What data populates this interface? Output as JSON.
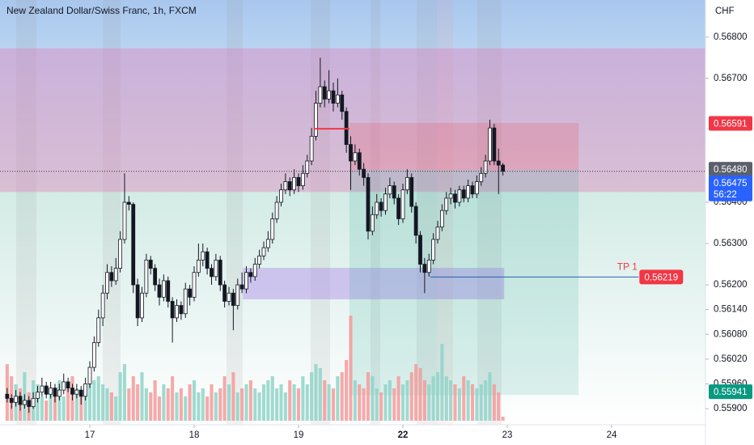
{
  "chart_data": {
    "type": "candlestick",
    "title": "New Zealand Dollar/Swiss Franc, 1h, FXCM",
    "currency": "CHF",
    "xlim": [
      -20.65,
      141.58
    ],
    "ylim": [
      0.55861,
      0.5689
    ],
    "xticks": [
      {
        "value": 0,
        "label": "17"
      },
      {
        "value": 24,
        "label": "18"
      },
      {
        "value": 48,
        "label": "19"
      },
      {
        "value": 72,
        "label": "22"
      },
      {
        "value": 96,
        "label": "23"
      },
      {
        "value": 120,
        "label": "24"
      }
    ],
    "yticks": [
      {
        "value": 0.568,
        "label": "0.56800"
      },
      {
        "value": 0.567,
        "label": "0.56700"
      },
      {
        "value": 0.564,
        "label": "0.56400"
      },
      {
        "value": 0.563,
        "label": "0.56300"
      },
      {
        "value": 0.562,
        "label": "0.56200"
      },
      {
        "value": 0.5614,
        "label": "0.56140"
      },
      {
        "value": 0.5608,
        "label": "0.56080"
      },
      {
        "value": 0.5602,
        "label": "0.56020"
      },
      {
        "value": 0.5596,
        "label": "0.55960"
      },
      {
        "value": 0.559,
        "label": "0.55900"
      }
    ],
    "up_color": "#ffffff",
    "down_color": "#131722",
    "volume_up_color": "#8fd3c8",
    "volume_down_color": "#f59a9a",
    "x": [
      -19,
      -18,
      -17,
      -16,
      -15,
      -14,
      -13,
      -12,
      -11,
      -10,
      -9,
      -8,
      -7,
      -6,
      -5,
      -4,
      -3,
      -2,
      -1,
      0,
      1,
      2,
      3,
      4,
      5,
      6,
      7,
      8,
      9,
      10,
      11,
      12,
      13,
      14,
      15,
      16,
      17,
      18,
      19,
      20,
      21,
      22,
      23,
      24,
      25,
      26,
      27,
      28,
      29,
      30,
      31,
      32,
      33,
      34,
      35,
      36,
      37,
      38,
      39,
      40,
      41,
      42,
      43,
      44,
      45,
      46,
      47,
      48,
      49,
      50,
      51,
      52,
      53,
      54,
      55,
      56,
      57,
      58,
      59,
      60,
      61,
      62,
      63,
      64,
      65,
      66,
      67,
      68,
      69,
      70,
      71,
      72,
      73,
      74,
      75,
      76,
      77,
      78,
      79,
      80,
      81,
      82,
      83,
      84,
      85,
      86,
      87,
      88,
      89,
      90,
      91,
      92,
      93,
      94,
      95
    ],
    "open": [
      0.55935,
      0.55925,
      0.55915,
      0.5593,
      0.5591,
      0.5592,
      0.55905,
      0.55925,
      0.5594,
      0.55955,
      0.55935,
      0.5595,
      0.5593,
      0.55945,
      0.55965,
      0.5595,
      0.55935,
      0.55945,
      0.5593,
      0.5596,
      0.56,
      0.5606,
      0.5612,
      0.5618,
      0.5623,
      0.5621,
      0.5624,
      0.5631,
      0.564,
      0.56395,
      0.562,
      0.5612,
      0.5618,
      0.5626,
      0.5624,
      0.562,
      0.5617,
      0.5621,
      0.5616,
      0.5612,
      0.5615,
      0.5613,
      0.5619,
      0.5617,
      0.5623,
      0.5626,
      0.5628,
      0.5624,
      0.5622,
      0.5626,
      0.562,
      0.5616,
      0.5618,
      0.5615,
      0.562,
      0.5619,
      0.5623,
      0.5622,
      0.5625,
      0.5627,
      0.5629,
      0.5631,
      0.5636,
      0.564,
      0.5643,
      0.5645,
      0.5643,
      0.5646,
      0.5644,
      0.5647,
      0.565,
      0.5656,
      0.5664,
      0.5668,
      0.5665,
      0.5667,
      0.5664,
      0.5666,
      0.5662,
      0.5654,
      0.565,
      0.5652,
      0.5648,
      0.5646,
      0.5633,
      0.5637,
      0.564,
      0.5638,
      0.5642,
      0.5644,
      0.5641,
      0.5636,
      0.5643,
      0.5646,
      0.5639,
      0.5632,
      0.5625,
      0.5623,
      0.5626,
      0.5631,
      0.5634,
      0.5638,
      0.5641,
      0.5642,
      0.564,
      0.5643,
      0.5641,
      0.5644,
      0.5642,
      0.5645,
      0.5647,
      0.565,
      0.5658,
      0.565,
      0.5649
    ],
    "high": [
      0.5595,
      0.55935,
      0.55945,
      0.5594,
      0.55935,
      0.5593,
      0.5594,
      0.55955,
      0.55975,
      0.55965,
      0.55965,
      0.5596,
      0.5596,
      0.55985,
      0.55975,
      0.5596,
      0.5596,
      0.55955,
      0.55975,
      0.56015,
      0.56075,
      0.5614,
      0.562,
      0.5625,
      0.56245,
      0.56265,
      0.5633,
      0.5647,
      0.56415,
      0.564,
      0.56215,
      0.56195,
      0.56275,
      0.5627,
      0.5625,
      0.56215,
      0.56225,
      0.5622,
      0.5617,
      0.56165,
      0.5616,
      0.56205,
      0.562,
      0.56245,
      0.563,
      0.563,
      0.5629,
      0.5625,
      0.56275,
      0.5627,
      0.5621,
      0.56195,
      0.5619,
      0.56215,
      0.5623,
      0.56245,
      0.5624,
      0.56265,
      0.56285,
      0.56305,
      0.5633,
      0.56375,
      0.56415,
      0.56445,
      0.5647,
      0.5646,
      0.5648,
      0.5647,
      0.5649,
      0.56515,
      0.5658,
      0.5667,
      0.5675,
      0.56695,
      0.5672,
      0.5669,
      0.567,
      0.5667,
      0.5663,
      0.5656,
      0.5654,
      0.5653,
      0.56495,
      0.5647,
      0.5639,
      0.5642,
      0.5641,
      0.56435,
      0.5646,
      0.5645,
      0.5642,
      0.56445,
      0.5648,
      0.5647,
      0.564,
      0.5633,
      0.56265,
      0.56275,
      0.56325,
      0.56355,
      0.56395,
      0.56425,
      0.56435,
      0.5643,
      0.5644,
      0.5644,
      0.56455,
      0.5645,
      0.56465,
      0.56485,
      0.56515,
      0.566,
      0.5659,
      0.5653,
      0.56495
    ],
    "low": [
      0.55915,
      0.559,
      0.55905,
      0.55895,
      0.559,
      0.5589,
      0.559,
      0.55915,
      0.5593,
      0.55925,
      0.55925,
      0.55915,
      0.5592,
      0.55935,
      0.5594,
      0.5592,
      0.55925,
      0.5591,
      0.5592,
      0.5595,
      0.5599,
      0.5605,
      0.561,
      0.56165,
      0.56195,
      0.562,
      0.5623,
      0.563,
      0.5638,
      0.5618,
      0.561,
      0.5611,
      0.5617,
      0.56225,
      0.56185,
      0.5615,
      0.5616,
      0.56145,
      0.5606,
      0.5611,
      0.56115,
      0.5612,
      0.5615,
      0.5616,
      0.5622,
      0.56245,
      0.56225,
      0.562,
      0.5621,
      0.56185,
      0.56145,
      0.5615,
      0.5609,
      0.5614,
      0.5618,
      0.5618,
      0.56205,
      0.5621,
      0.5624,
      0.5626,
      0.5628,
      0.563,
      0.5635,
      0.5639,
      0.5642,
      0.56415,
      0.5642,
      0.56425,
      0.5643,
      0.5646,
      0.5649,
      0.5655,
      0.5663,
      0.5663,
      0.5664,
      0.5662,
      0.5663,
      0.566,
      0.5652,
      0.5643,
      0.5649,
      0.56465,
      0.5644,
      0.5631,
      0.5632,
      0.5636,
      0.56365,
      0.5637,
      0.5641,
      0.56395,
      0.56345,
      0.5635,
      0.5642,
      0.56375,
      0.563,
      0.5623,
      0.5618,
      0.5622,
      0.5625,
      0.563,
      0.5633,
      0.5637,
      0.56395,
      0.56385,
      0.5639,
      0.564,
      0.564,
      0.5641,
      0.5641,
      0.5644,
      0.5646,
      0.5649,
      0.5649,
      0.5642,
      0.56465
    ],
    "close": [
      0.55925,
      0.55915,
      0.5593,
      0.5591,
      0.5592,
      0.55905,
      0.55925,
      0.5594,
      0.55955,
      0.55935,
      0.5595,
      0.5593,
      0.55945,
      0.55965,
      0.5595,
      0.55935,
      0.55945,
      0.5593,
      0.5596,
      0.56,
      0.5606,
      0.5612,
      0.5618,
      0.5623,
      0.5621,
      0.5624,
      0.5631,
      0.564,
      0.56395,
      0.562,
      0.5612,
      0.5618,
      0.5626,
      0.5624,
      0.562,
      0.5617,
      0.5621,
      0.5616,
      0.5612,
      0.5615,
      0.5613,
      0.5619,
      0.5617,
      0.5623,
      0.5626,
      0.5628,
      0.5624,
      0.5622,
      0.5626,
      0.562,
      0.5616,
      0.5618,
      0.5615,
      0.562,
      0.5619,
      0.5623,
      0.5622,
      0.5625,
      0.5627,
      0.5629,
      0.5631,
      0.5636,
      0.564,
      0.5643,
      0.5645,
      0.5643,
      0.5646,
      0.5644,
      0.5647,
      0.565,
      0.5656,
      0.5664,
      0.5668,
      0.5665,
      0.5667,
      0.5664,
      0.5666,
      0.5662,
      0.5654,
      0.565,
      0.5652,
      0.5648,
      0.5646,
      0.5633,
      0.5637,
      0.564,
      0.5638,
      0.5642,
      0.5644,
      0.5641,
      0.5636,
      0.5643,
      0.5646,
      0.5639,
      0.5632,
      0.5625,
      0.5623,
      0.5626,
      0.5631,
      0.5634,
      0.5638,
      0.5641,
      0.5642,
      0.564,
      0.5643,
      0.5641,
      0.5644,
      0.5642,
      0.5645,
      0.5647,
      0.565,
      0.5658,
      0.565,
      0.5649,
      0.56475
    ],
    "volume": [
      70,
      55,
      45,
      40,
      60,
      35,
      50,
      45,
      30,
      25,
      40,
      35,
      50,
      30,
      45,
      55,
      40,
      30,
      45,
      60,
      50,
      55,
      45,
      40,
      35,
      30,
      60,
      70,
      40,
      55,
      45,
      60,
      40,
      35,
      50,
      30,
      45,
      40,
      55,
      35,
      40,
      30,
      45,
      50,
      35,
      40,
      30,
      45,
      35,
      40,
      55,
      45,
      60,
      35,
      40,
      45,
      50,
      40,
      35,
      45,
      50,
      55,
      40,
      45,
      35,
      50,
      45,
      40,
      55,
      45,
      60,
      70,
      65,
      50,
      45,
      40,
      55,
      60,
      75,
      130,
      50,
      45,
      40,
      60,
      55,
      40,
      35,
      45,
      50,
      40,
      55,
      45,
      50,
      60,
      70,
      65,
      50,
      45,
      55,
      60,
      95,
      55,
      50,
      45,
      40,
      55,
      50,
      45,
      40,
      45,
      50,
      60,
      45,
      35,
      5
    ],
    "zones": [
      {
        "x": [
          -20.65,
          141.58
        ],
        "y": [
          0.56425,
          0.56773
        ],
        "color": "rgba(228,120,185,0.38)"
      },
      {
        "x": [
          35.2,
          95.3
        ],
        "y": [
          0.56165,
          0.56241
        ],
        "color": "rgba(175,140,235,0.45)"
      },
      {
        "x": [
          59.7,
          112.4
        ],
        "y": [
          0.56478,
          0.56592
        ],
        "color": "rgba(242,54,69,0.18)"
      },
      {
        "x": [
          59.7,
          112.4
        ],
        "y": [
          0.55933,
          0.56478
        ],
        "color": "rgba(8,153,129,0.13)"
      }
    ],
    "levels": [
      {
        "x": [
          51.5,
          59.7
        ],
        "y": 0.56578,
        "color": "#f23645"
      }
    ],
    "tp": {
      "label": "TP 1",
      "x": [
        78.3,
        126.2
      ],
      "value": 0.56219,
      "color": "#f23645"
    },
    "price_labels": [
      {
        "value": 0.56591,
        "label": "0.56591",
        "color": "#f23645"
      },
      {
        "value": 0.5648,
        "label": "0.56480",
        "color": "#5d606b"
      },
      {
        "value": 0.56475,
        "label": "0.56475",
        "color": "#2962ff",
        "countdown": "56:22"
      },
      {
        "value": 0.55941,
        "label": "0.55941",
        "color": "#089981"
      }
    ]
  }
}
